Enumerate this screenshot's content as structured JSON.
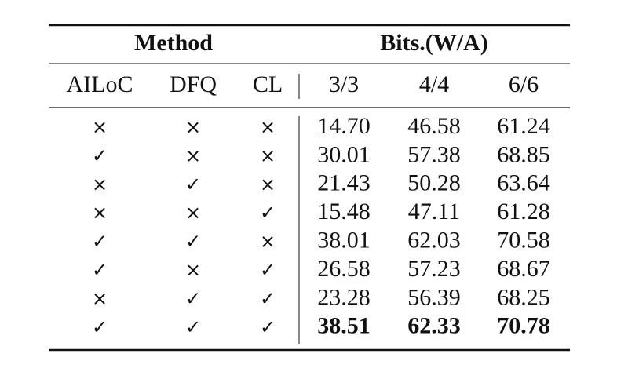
{
  "table": {
    "group_headers": [
      "Method",
      "Bits.(W/A)"
    ],
    "columns": [
      "AILoC",
      "DFQ",
      "CL",
      "3/3",
      "4/4",
      "6/6"
    ],
    "rows": [
      [
        "×",
        "×",
        "×",
        "14.70",
        "46.58",
        "61.24"
      ],
      [
        "✓",
        "×",
        "×",
        "30.01",
        "57.38",
        "68.85"
      ],
      [
        "×",
        "✓",
        "×",
        "21.43",
        "50.28",
        "63.64"
      ],
      [
        "×",
        "×",
        "✓",
        "15.48",
        "47.11",
        "61.28"
      ],
      [
        "✓",
        "✓",
        "×",
        "38.01",
        "62.03",
        "70.58"
      ],
      [
        "✓",
        "×",
        "✓",
        "26.58",
        "57.23",
        "68.67"
      ],
      [
        "×",
        "✓",
        "✓",
        "23.28",
        "56.39",
        "68.25"
      ],
      [
        "✓",
        "✓",
        "✓",
        "38.51",
        "62.33",
        "70.78"
      ]
    ]
  }
}
